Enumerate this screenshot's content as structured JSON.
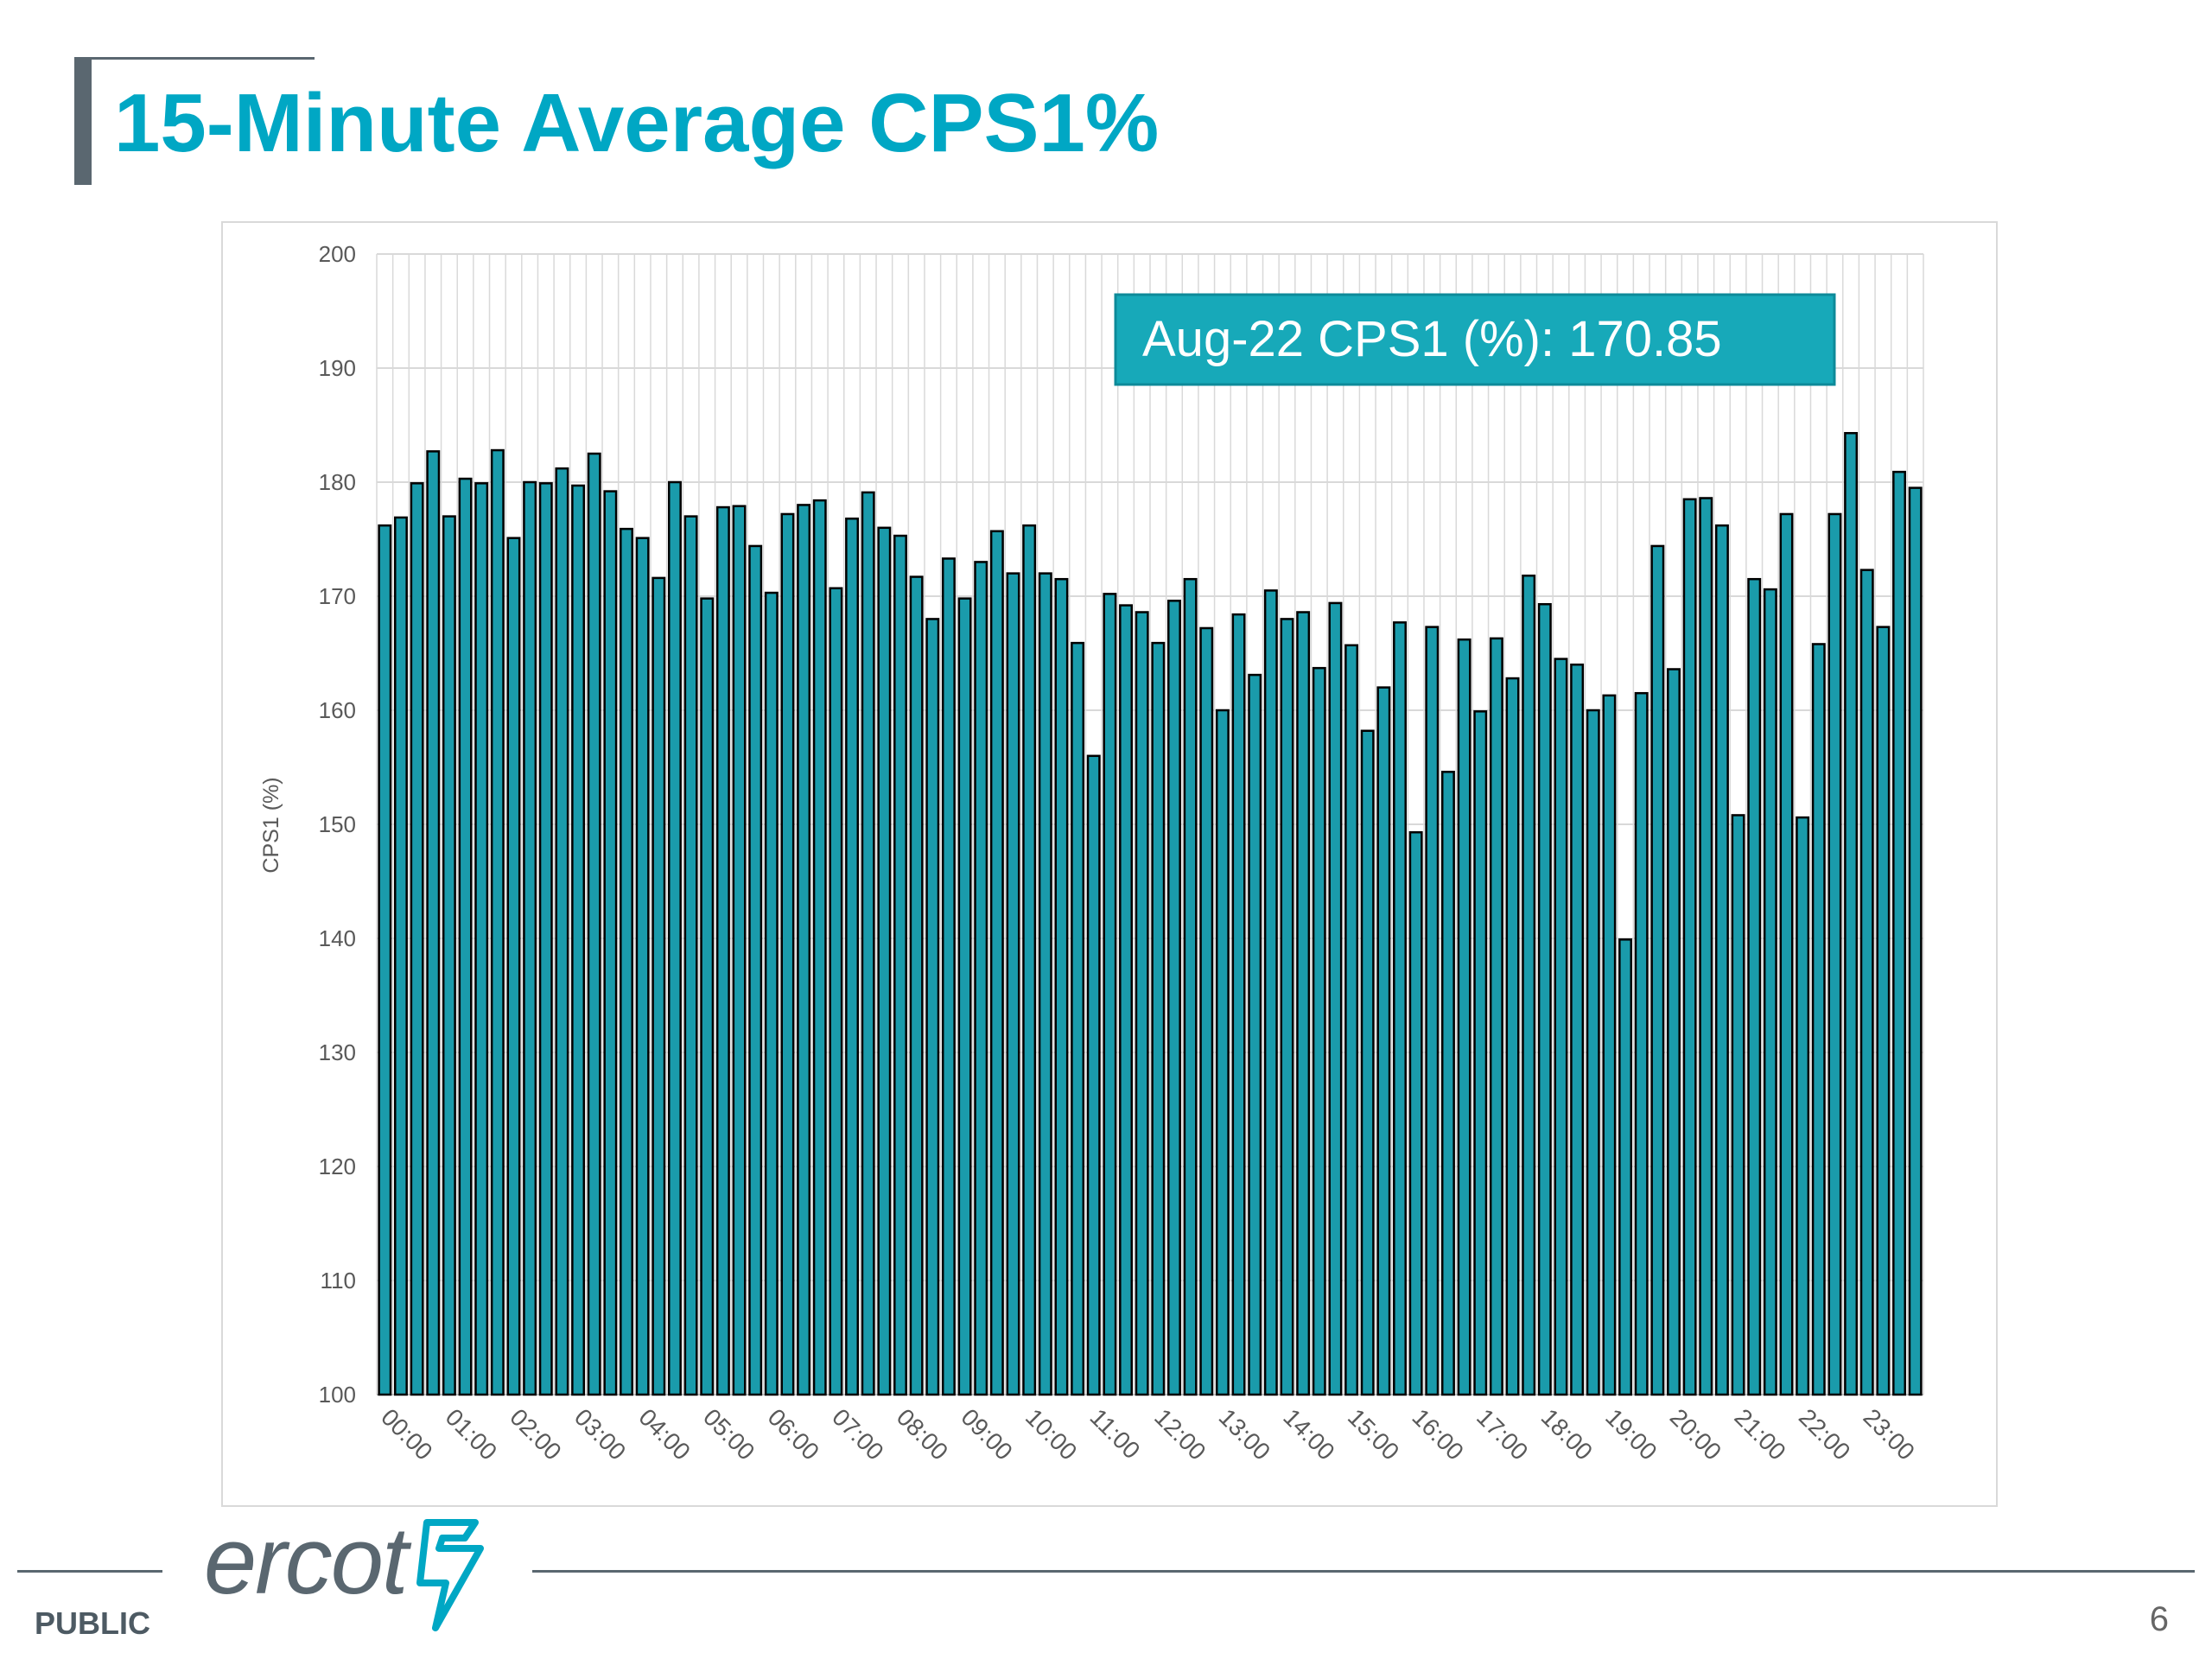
{
  "slide": {
    "title": "15-Minute Average CPS1%",
    "footer_label": "PUBLIC",
    "page_number": "6",
    "logo_text": "ercot",
    "colors": {
      "title": "#00a7c4",
      "bar": "#1a9bab",
      "annotation_bg": "#17a9b9",
      "dark_gray": "#5a6770"
    }
  },
  "chart_data": {
    "type": "bar",
    "title": "",
    "xlabel": "",
    "ylabel": "CPS1 (%)",
    "ylim": [
      100,
      200
    ],
    "yticks": [
      100,
      110,
      120,
      130,
      140,
      150,
      160,
      170,
      180,
      190,
      200
    ],
    "x_tick_labels": [
      "00:00",
      "01:00",
      "02:00",
      "03:00",
      "04:00",
      "05:00",
      "06:00",
      "07:00",
      "08:00",
      "09:00",
      "10:00",
      "11:00",
      "12:00",
      "13:00",
      "14:00",
      "15:00",
      "16:00",
      "17:00",
      "18:00",
      "19:00",
      "20:00",
      "21:00",
      "22:00",
      "23:00"
    ],
    "grid": {
      "vertical": true,
      "horizontal": true
    },
    "annotation": "Aug-22 CPS1 (%): 170.85",
    "values": [
      176.2,
      176.9,
      179.9,
      182.7,
      177.0,
      180.3,
      179.9,
      182.8,
      175.1,
      180.0,
      179.9,
      181.2,
      179.7,
      182.5,
      179.2,
      175.9,
      175.1,
      171.6,
      180.0,
      177.0,
      169.8,
      177.8,
      177.9,
      174.4,
      170.3,
      177.2,
      178.0,
      178.4,
      170.7,
      176.8,
      179.1,
      176.0,
      175.3,
      171.7,
      168.0,
      173.3,
      169.8,
      173.0,
      175.7,
      172.0,
      176.2,
      172.0,
      171.5,
      165.9,
      156.0,
      170.2,
      169.2,
      168.6,
      165.9,
      169.6,
      171.5,
      167.2,
      160.0,
      168.4,
      163.1,
      170.5,
      168.0,
      168.6,
      163.7,
      169.4,
      165.7,
      158.2,
      162.0,
      167.7,
      149.3,
      167.3,
      154.6,
      166.2,
      159.9,
      166.3,
      162.8,
      171.8,
      169.3,
      164.5,
      164.0,
      160.0,
      161.3,
      139.9,
      161.5,
      174.4,
      163.6,
      178.5,
      178.6,
      176.2,
      150.8,
      171.5,
      170.6,
      177.2,
      150.6,
      165.8,
      177.2,
      184.3,
      172.3,
      167.3,
      180.9,
      179.5
    ]
  }
}
